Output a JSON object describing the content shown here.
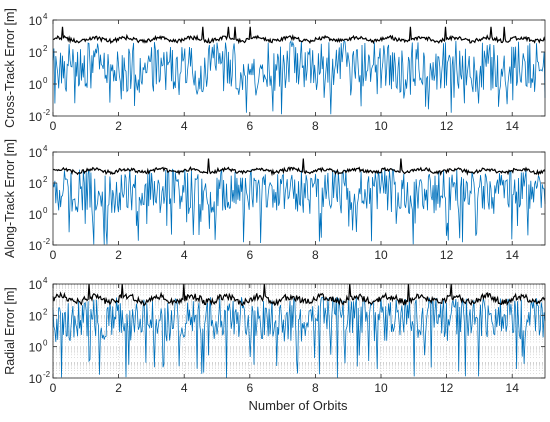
{
  "figure": {
    "xlabel": "Number of Orbits",
    "colors": {
      "error_series": "#0072BD",
      "bound_series": "#000000",
      "axes": "#262626",
      "grid": "#bdbdbd"
    }
  },
  "chart_data": [
    {
      "type": "line",
      "ylabel": "Cross-Track Error [m]",
      "xlim": [
        0,
        15
      ],
      "ylim": [
        0.01,
        10000
      ],
      "yscale": "log",
      "grid": false,
      "x_ticks": [
        "0",
        "2",
        "4",
        "6",
        "8",
        "10",
        "12",
        "14"
      ],
      "y_ticks": [
        {
          "base": "10",
          "exp": "-2"
        },
        {
          "base": "10",
          "exp": "0"
        },
        {
          "base": "10",
          "exp": "2"
        },
        {
          "base": "10",
          "exp": "4"
        }
      ],
      "series": [
        {
          "role": "error",
          "color": "#0072BD",
          "typical_range": [
            0.3,
            500
          ],
          "min_dips": 0.01
        },
        {
          "role": "bound",
          "color": "#000000",
          "typical_range": [
            300,
            1500
          ]
        }
      ]
    },
    {
      "type": "line",
      "ylabel": "Along-Track Error [m]",
      "xlim": [
        0,
        15
      ],
      "ylim": [
        0.01,
        10000
      ],
      "yscale": "log",
      "grid": false,
      "x_ticks": [
        "0",
        "2",
        "4",
        "6",
        "8",
        "10",
        "12",
        "14"
      ],
      "y_ticks": [
        {
          "base": "10",
          "exp": "-2"
        },
        {
          "base": "10",
          "exp": "0"
        },
        {
          "base": "10",
          "exp": "2"
        },
        {
          "base": "10",
          "exp": "4"
        }
      ],
      "series": [
        {
          "role": "error",
          "color": "#0072BD",
          "typical_range": [
            1,
            800
          ],
          "min_dips": 0.01
        },
        {
          "role": "bound",
          "color": "#000000",
          "typical_range": [
            300,
            1500
          ]
        }
      ]
    },
    {
      "type": "line",
      "ylabel": "Radial Error [m]",
      "xlim": [
        0,
        15
      ],
      "ylim": [
        0.01,
        10000
      ],
      "yscale": "log",
      "grid": true,
      "x_ticks": [
        "0",
        "2",
        "4",
        "6",
        "8",
        "10",
        "12",
        "14"
      ],
      "y_ticks": [
        {
          "base": "10",
          "exp": "-2"
        },
        {
          "base": "10",
          "exp": "0"
        },
        {
          "base": "10",
          "exp": "2"
        },
        {
          "base": "10",
          "exp": "4"
        }
      ],
      "series": [
        {
          "role": "error",
          "color": "#0072BD",
          "typical_range": [
            2,
            1500
          ],
          "min_dips": 0.01
        },
        {
          "role": "bound",
          "color": "#000000",
          "typical_range": [
            300,
            5000
          ]
        }
      ]
    }
  ]
}
